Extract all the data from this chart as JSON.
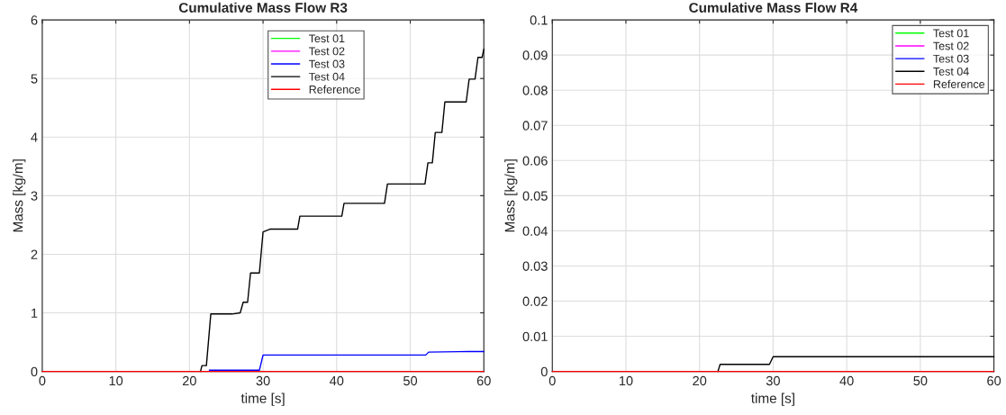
{
  "chart_data": [
    {
      "type": "line",
      "title": "Cumulative Mass Flow R3",
      "xlabel": "time [s]",
      "ylabel": "Mass [kg/m]",
      "xlim": [
        0,
        60
      ],
      "ylim": [
        0,
        6
      ],
      "xticks": [
        0,
        10,
        20,
        30,
        40,
        50,
        60
      ],
      "yticks": [
        0,
        1,
        2,
        3,
        4,
        5,
        6
      ],
      "grid": true,
      "legend": "top",
      "series": [
        {
          "name": "Test 01",
          "color": "#00ff00"
        },
        {
          "name": "Test 02",
          "color": "#ff00ff"
        },
        {
          "name": "Test 03",
          "color": "#0000ff",
          "x": [
            22.7,
            29.5,
            30.0,
            52.1,
            52.5,
            57.9,
            60
          ],
          "values": [
            0.02,
            0.02,
            0.28,
            0.28,
            0.33,
            0.34,
            0.34
          ]
        },
        {
          "name": "Test 04",
          "color": "#000000",
          "x": [
            21.5,
            21.7,
            22.3,
            22.9,
            25.8,
            26.9,
            27.3,
            27.9,
            28.3,
            29.5,
            30.0,
            31.0,
            34.7,
            35.0,
            40.7,
            41.0,
            46.5,
            46.9,
            52.0,
            52.4,
            53.0,
            53.4,
            54.3,
            54.7,
            57.6,
            58.0,
            58.8,
            59.2,
            59.75,
            60
          ],
          "values": [
            0,
            0.1,
            0.1,
            0.98,
            0.98,
            1.0,
            1.18,
            1.18,
            1.68,
            1.68,
            2.38,
            2.43,
            2.43,
            2.65,
            2.65,
            2.87,
            2.87,
            3.2,
            3.2,
            3.56,
            3.56,
            4.08,
            4.08,
            4.6,
            4.6,
            4.99,
            4.99,
            5.36,
            5.36,
            5.5
          ]
        },
        {
          "name": "Reference",
          "color": "#ff0000",
          "x": [
            0,
            60
          ],
          "values": [
            0,
            0
          ]
        }
      ]
    },
    {
      "type": "line",
      "title": "Cumulative Mass Flow R4",
      "xlabel": "time [s]",
      "ylabel": "Mass [kg/m]",
      "xlim": [
        0,
        60
      ],
      "ylim": [
        0,
        0.1
      ],
      "xticks": [
        0,
        10,
        20,
        30,
        40,
        50,
        60
      ],
      "yticks": [
        0,
        0.01,
        0.02,
        0.03,
        0.04,
        0.05,
        0.06,
        0.07,
        0.08,
        0.09,
        0.1
      ],
      "grid": true,
      "legend": "top right",
      "series": [
        {
          "name": "Test 01",
          "color": "#00ff00"
        },
        {
          "name": "Test 02",
          "color": "#ff00ff"
        },
        {
          "name": "Test 03",
          "color": "#0000ff"
        },
        {
          "name": "Test 04",
          "color": "#000000",
          "x": [
            22.5,
            22.8,
            29.5,
            30.0,
            60
          ],
          "values": [
            0,
            0.002,
            0.002,
            0.0042,
            0.0042
          ]
        },
        {
          "name": "Reference",
          "color": "#ff0000",
          "x": [
            0,
            60
          ],
          "values": [
            0,
            0
          ]
        }
      ]
    }
  ]
}
